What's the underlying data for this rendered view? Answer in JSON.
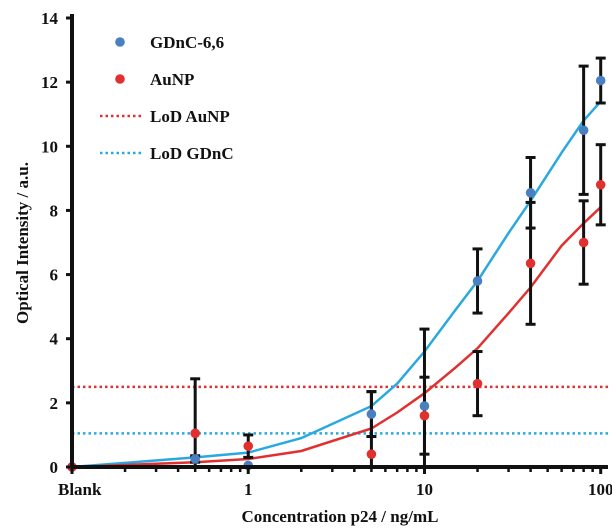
{
  "chart_data": {
    "type": "scatter",
    "xscale": "log",
    "xlabel": "Concentration p24 / ng/mL",
    "ylabel": "Optical Intensity / a.u.",
    "ylim": [
      0,
      14
    ],
    "yticks": [
      0,
      2,
      4,
      6,
      8,
      10,
      12,
      14
    ],
    "xticks": [
      {
        "value": 0.1,
        "label": "Blank"
      },
      {
        "value": 1,
        "label": "1"
      },
      {
        "value": 10,
        "label": "10"
      },
      {
        "value": 100,
        "label": "100"
      }
    ],
    "grid": false,
    "legend_position": "top-left",
    "series": [
      {
        "name": "GDnC-6,6",
        "color": "#4a7fc1",
        "x": [
          0.1,
          0.5,
          1,
          5,
          10,
          20,
          40,
          80,
          100
        ],
        "y": [
          0,
          0.25,
          0.05,
          1.65,
          1.9,
          5.8,
          8.55,
          10.5,
          12.05
        ],
        "err": [
          0,
          0.1,
          0,
          0.7,
          2.4,
          1.0,
          1.1,
          2.0,
          0.7
        ],
        "fit": {
          "color": "#29a9e0",
          "x": [
            0.1,
            0.5,
            1,
            2,
            5,
            7,
            10,
            15,
            20,
            30,
            40,
            60,
            80,
            100
          ],
          "y": [
            0,
            0.3,
            0.45,
            0.9,
            1.9,
            2.6,
            3.6,
            4.9,
            5.8,
            7.3,
            8.3,
            9.8,
            10.8,
            11.4
          ]
        }
      },
      {
        "name": "AuNP",
        "color": "#e03030",
        "x": [
          0.1,
          0.5,
          1,
          5,
          10,
          20,
          40,
          80,
          100
        ],
        "y": [
          0,
          1.05,
          0.65,
          0.4,
          1.6,
          2.6,
          6.35,
          7.0,
          8.8
        ],
        "err": [
          0,
          1.7,
          0.35,
          1.95,
          1.2,
          1.0,
          1.9,
          1.3,
          1.25
        ],
        "fit": {
          "color": "#e03030",
          "x": [
            0.1,
            0.5,
            1,
            2,
            5,
            7,
            10,
            15,
            20,
            30,
            40,
            60,
            80,
            100
          ],
          "y": [
            0,
            0.15,
            0.25,
            0.5,
            1.2,
            1.7,
            2.3,
            3.1,
            3.7,
            4.8,
            5.6,
            6.9,
            7.6,
            8.1
          ]
        }
      }
    ],
    "reference_lines": [
      {
        "name": "LoD AuNP",
        "y": 2.5,
        "color": "#e03030"
      },
      {
        "name": "LoD GDnC",
        "y": 1.05,
        "color": "#29a9e0"
      }
    ]
  }
}
